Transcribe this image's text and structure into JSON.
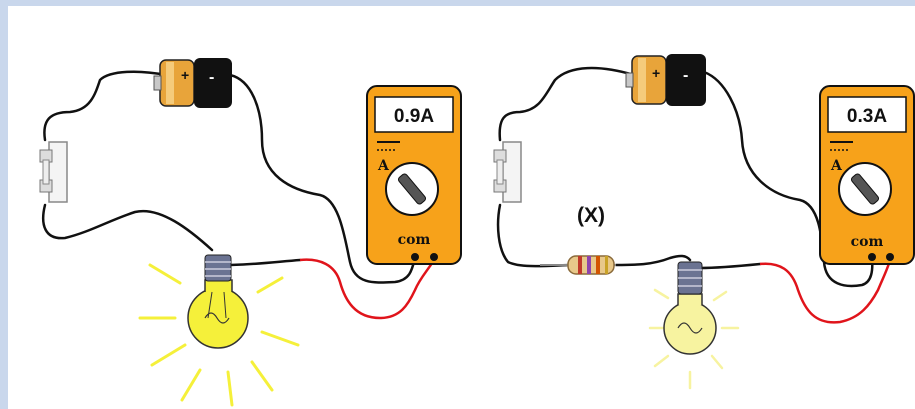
{
  "circuit_1": {
    "meter_reading": "0.9A",
    "meter_unit": "A",
    "meter_terminal": "com",
    "battery_sign_positive": "+",
    "battery_sign_negative": "-"
  },
  "circuit_2": {
    "meter_reading": "0.3A",
    "meter_unit": "A",
    "meter_terminal": "com",
    "battery_sign_positive": "+",
    "battery_sign_negative": "-",
    "resistor_label": "(X)"
  },
  "colors": {
    "meter_body": "#f7a21a",
    "wire": "#111111",
    "probe_wire": "#e0141b",
    "bulb_glow": "#f5f03a",
    "battery_body": "#e8a43a"
  }
}
